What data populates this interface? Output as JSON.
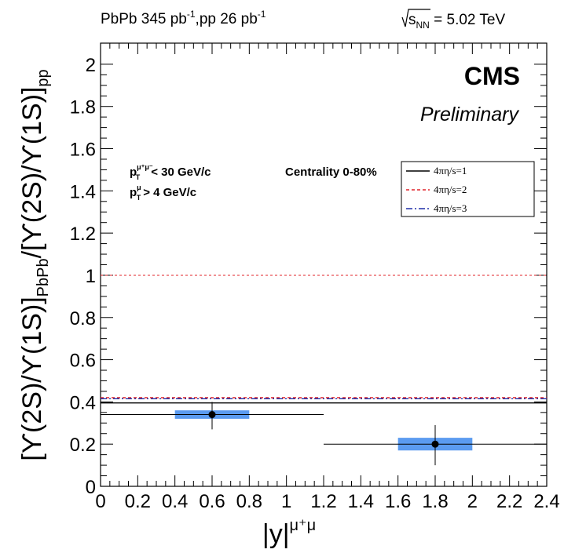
{
  "header": {
    "lumi_prefix": "PbPb 345 pb",
    "lumi_exp1": "-1",
    "lumi_mid": ",pp 26 pb",
    "lumi_exp2": "-1",
    "energy_s": "s",
    "energy_sub": "NN",
    "energy_value": " = 5.02 TeV"
  },
  "labels": {
    "cms": "CMS",
    "preliminary": "Preliminary",
    "pt_mumu_p": "p",
    "pt_mumu_sup": "μ⁺μ⁻",
    "pt_mumu_sub": "T",
    "pt_mumu_cut": "< 30 GeV/c",
    "pt_mu_p": "p",
    "pt_mu_sup": "μ",
    "pt_mu_sub": "T",
    "pt_mu_cut": "> 4 GeV/c",
    "centrality": "Centrality 0-80%"
  },
  "chart_data": {
    "type": "scatter",
    "xlabel": "|y|",
    "xlabel_sup": "μ⁺μ",
    "ylabel_a": "[ϒ(2S)/ϒ(1S)]",
    "ylabel_a_sub": "PbPb",
    "ylabel_b": "/[ϒ(2S)/ϒ(1S)]",
    "ylabel_b_sub": "pp",
    "xlim": [
      0,
      2.4
    ],
    "ylim": [
      0,
      2.1
    ],
    "x_ticks": [
      {
        "v": 0,
        "label": "0"
      },
      {
        "v": 0.2,
        "label": "0.2"
      },
      {
        "v": 0.4,
        "label": "0.4"
      },
      {
        "v": 0.6,
        "label": "0.6"
      },
      {
        "v": 0.8,
        "label": "0.8"
      },
      {
        "v": 1.0,
        "label": "1"
      },
      {
        "v": 1.2,
        "label": "1.2"
      },
      {
        "v": 1.4,
        "label": "1.4"
      },
      {
        "v": 1.6,
        "label": "1.6"
      },
      {
        "v": 1.8,
        "label": "1.8"
      },
      {
        "v": 2.0,
        "label": "2"
      },
      {
        "v": 2.2,
        "label": "2.2"
      },
      {
        "v": 2.4,
        "label": "2.4"
      }
    ],
    "y_ticks": [
      {
        "v": 0,
        "label": "0"
      },
      {
        "v": 0.2,
        "label": "0.2"
      },
      {
        "v": 0.4,
        "label": "0.4"
      },
      {
        "v": 0.6,
        "label": "0.6"
      },
      {
        "v": 0.8,
        "label": "0.8"
      },
      {
        "v": 1.0,
        "label": "1"
      },
      {
        "v": 1.2,
        "label": "1.2"
      },
      {
        "v": 1.4,
        "label": "1.4"
      },
      {
        "v": 1.6,
        "label": "1.6"
      },
      {
        "v": 1.8,
        "label": "1.8"
      },
      {
        "v": 2.0,
        "label": "2"
      }
    ],
    "points": [
      {
        "x": 0.6,
        "y": 0.34,
        "xerr_lo": 0.6,
        "xerr_hi": 0.6,
        "stat_lo": 0.07,
        "stat_hi": 0.06,
        "sys_x_lo": 0.4,
        "sys_x_hi": 0.8,
        "sys_lo": 0.32,
        "sys_hi": 0.36
      },
      {
        "x": 1.8,
        "y": 0.2,
        "xerr_lo": 0.6,
        "xerr_hi": 0.6,
        "stat_lo": 0.1,
        "stat_hi": 0.09,
        "sys_x_lo": 1.6,
        "sys_x_hi": 2.0,
        "sys_lo": 0.17,
        "sys_hi": 0.23
      }
    ],
    "marker_color": "#000000",
    "sys_box_color": "#5b9bf0",
    "series": [
      {
        "name": "4πη/s=1",
        "y": 0.395,
        "color": "#000000",
        "dash": "solid"
      },
      {
        "name": "4πη/s=2",
        "y": 0.42,
        "color": "#e0232a",
        "dash": "dashed"
      },
      {
        "name": "4πη/s=3",
        "y": 0.415,
        "color": "#1f2fa8",
        "dash": "dashdot"
      }
    ],
    "reference_lines": [
      {
        "y": 1.0,
        "color": "#e0232a",
        "dash": "dotted"
      }
    ],
    "legend_position": "top-right"
  }
}
